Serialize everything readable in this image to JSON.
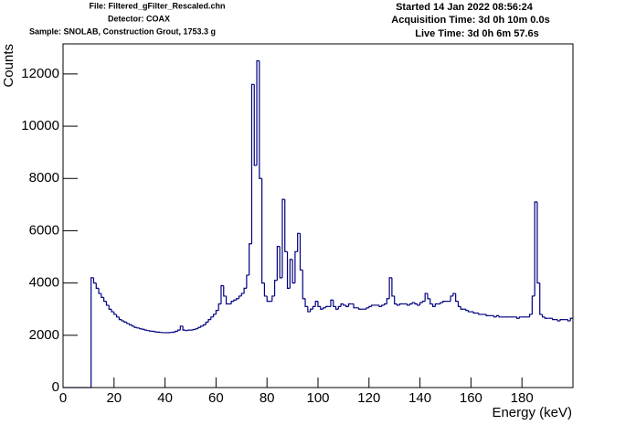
{
  "chart_data": {
    "type": "histogram",
    "header_left": [
      "File: Filtered_gFilter_Rescaled.chn",
      "Detector: COAX",
      "Sample: SNOLAB, Construction Grout, 1753.3 g"
    ],
    "header_right": [
      "Started 14 Jan 2022 08:56:24",
      "Acquisition Time: 3d 0h 10m 0.0s",
      "Live Time: 3d 0h 6m 57.6s"
    ],
    "xlabel": "Energy (keV)",
    "ylabel": "Counts",
    "color": "#000080",
    "xlim": [
      0,
      200
    ],
    "ylim": [
      0,
      13150
    ],
    "xticks": [
      0,
      20,
      40,
      60,
      80,
      100,
      120,
      140,
      160,
      180
    ],
    "yticks": [
      0,
      2000,
      4000,
      6000,
      8000,
      10000,
      12000
    ],
    "bins": [
      0,
      1,
      2,
      3,
      4,
      5,
      6,
      7,
      8,
      9,
      10,
      11,
      12,
      13,
      14,
      15,
      16,
      17,
      18,
      19,
      20,
      21,
      22,
      23,
      24,
      25,
      26,
      27,
      28,
      29,
      30,
      31,
      32,
      33,
      34,
      35,
      36,
      37,
      38,
      39,
      40,
      41,
      42,
      43,
      44,
      45,
      46,
      47,
      48,
      49,
      50,
      51,
      52,
      53,
      54,
      55,
      56,
      57,
      58,
      59,
      60,
      61,
      62,
      63,
      64,
      65,
      66,
      67,
      68,
      69,
      70,
      71,
      72,
      73,
      74,
      75,
      76,
      77,
      78,
      79,
      80,
      81,
      82,
      83,
      84,
      85,
      86,
      87,
      88,
      89,
      90,
      91,
      92,
      93,
      94,
      95,
      96,
      97,
      98,
      99,
      100,
      101,
      102,
      103,
      104,
      105,
      106,
      107,
      108,
      109,
      110,
      111,
      112,
      113,
      114,
      115,
      116,
      117,
      118,
      119,
      120,
      121,
      122,
      123,
      124,
      125,
      126,
      127,
      128,
      129,
      130,
      131,
      132,
      133,
      134,
      135,
      136,
      137,
      138,
      139,
      140,
      141,
      142,
      143,
      144,
      145,
      146,
      147,
      148,
      149,
      150,
      151,
      152,
      153,
      154,
      155,
      156,
      157,
      158,
      159,
      160,
      161,
      162,
      163,
      164,
      165,
      166,
      167,
      168,
      169,
      170,
      171,
      172,
      173,
      174,
      175,
      176,
      177,
      178,
      179,
      180,
      181,
      182,
      183,
      184,
      185,
      186,
      187,
      188,
      189,
      190,
      191,
      192,
      193,
      194,
      195,
      196,
      197,
      198,
      199,
      200
    ],
    "counts": [
      0,
      0,
      0,
      0,
      0,
      0,
      0,
      0,
      0,
      0,
      0,
      4200,
      4000,
      3800,
      3600,
      3450,
      3300,
      3150,
      3000,
      2900,
      2800,
      2700,
      2600,
      2550,
      2500,
      2450,
      2400,
      2350,
      2300,
      2280,
      2250,
      2230,
      2200,
      2180,
      2160,
      2150,
      2130,
      2120,
      2110,
      2100,
      2100,
      2100,
      2110,
      2120,
      2150,
      2200,
      2350,
      2200,
      2180,
      2200,
      2200,
      2220,
      2250,
      2300,
      2350,
      2400,
      2500,
      2600,
      2700,
      2800,
      2950,
      3200,
      3900,
      3500,
      3200,
      3200,
      3300,
      3350,
      3400,
      3500,
      3600,
      3800,
      4300,
      5500,
      11600,
      8500,
      12500,
      8000,
      4000,
      3500,
      3300,
      3300,
      3500,
      4100,
      5400,
      4200,
      7200,
      5200,
      3800,
      4900,
      4000,
      5200,
      5900,
      4500,
      3400,
      3100,
      2900,
      3000,
      3100,
      3300,
      3100,
      3000,
      3050,
      3100,
      3100,
      3350,
      3100,
      3000,
      3100,
      3200,
      3150,
      3100,
      3200,
      3200,
      3050,
      3050,
      3000,
      3000,
      3000,
      3050,
      3100,
      3150,
      3150,
      3150,
      3100,
      3150,
      3200,
      3400,
      4200,
      3500,
      3200,
      3150,
      3200,
      3200,
      3200,
      3150,
      3200,
      3250,
      3200,
      3150,
      3250,
      3300,
      3600,
      3400,
      3200,
      3100,
      3200,
      3200,
      3250,
      3300,
      3300,
      3300,
      3500,
      3600,
      3300,
      3100,
      3000,
      3000,
      2950,
      2900,
      2900,
      2850,
      2850,
      2800,
      2800,
      2800,
      2750,
      2750,
      2750,
      2700,
      2750,
      2700,
      2700,
      2700,
      2700,
      2700,
      2700,
      2700,
      2650,
      2700,
      2700,
      2700,
      2700,
      2800,
      3500,
      7100,
      4000,
      2800,
      2700,
      2650,
      2650,
      2650,
      2600,
      2600,
      2550,
      2600,
      2600,
      2600,
      2550,
      2650
    ]
  }
}
